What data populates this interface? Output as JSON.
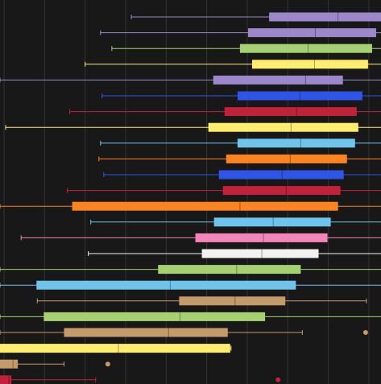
{
  "chart_data": {
    "type": "boxplot",
    "orientation": "horizontal",
    "grid": true,
    "xlim": [
      -10,
      930
    ],
    "background": "#181818",
    "grid_color": "#333333",
    "series": [
      {
        "color": "#9B87C9",
        "whisker_low": 314,
        "q1": 654,
        "median": 824,
        "q3": 933,
        "whisker_high": 940,
        "outliers": []
      },
      {
        "color": "#9B87C9",
        "whisker_low": 238,
        "q1": 602,
        "median": 768,
        "q3": 918,
        "whisker_high": 940,
        "outliers": []
      },
      {
        "color": "#A6D173",
        "whisker_low": 266,
        "q1": 582,
        "median": 750,
        "q3": 908,
        "whisker_high": 940,
        "outliers": []
      },
      {
        "color": "#FFEE6E",
        "whisker_low": 200,
        "q1": 612,
        "median": 766,
        "q3": 898,
        "whisker_high": 940,
        "outliers": []
      },
      {
        "color": "#9B87C9",
        "whisker_low": -10,
        "q1": 516,
        "median": 744,
        "q3": 836,
        "whisker_high": 940,
        "outliers": []
      },
      {
        "color": "#2F55E8",
        "whisker_low": 242,
        "q1": 576,
        "median": 730,
        "q3": 884,
        "whisker_high": 940,
        "outliers": []
      },
      {
        "color": "#C2213A",
        "whisker_low": 162,
        "q1": 544,
        "median": 722,
        "q3": 870,
        "whisker_high": 940,
        "outliers": []
      },
      {
        "color": "#FFEE6E",
        "whisker_low": 4,
        "q1": 504,
        "median": 708,
        "q3": 874,
        "whisker_high": 940,
        "outliers": []
      },
      {
        "color": "#6FC4EC",
        "whisker_low": 238,
        "q1": 576,
        "median": 732,
        "q3": 866,
        "whisker_high": 940,
        "outliers": []
      },
      {
        "color": "#FB8320",
        "whisker_low": 234,
        "q1": 548,
        "median": 706,
        "q3": 846,
        "whisker_high": 940,
        "outliers": []
      },
      {
        "color": "#2F55E8",
        "whisker_low": 246,
        "q1": 530,
        "median": 686,
        "q3": 838,
        "whisker_high": 940,
        "outliers": []
      },
      {
        "color": "#C2213A",
        "whisker_low": 156,
        "q1": 540,
        "median": 696,
        "q3": 830,
        "whisker_high": 940,
        "outliers": []
      },
      {
        "color": "#FB8320",
        "whisker_low": -10,
        "q1": 168,
        "median": 582,
        "q3": 824,
        "whisker_high": 940,
        "outliers": []
      },
      {
        "color": "#6FC4EC",
        "whisker_low": 214,
        "q1": 518,
        "median": 664,
        "q3": 806,
        "whisker_high": 940,
        "outliers": []
      },
      {
        "color": "#F584B8",
        "whisker_low": 42,
        "q1": 472,
        "median": 640,
        "q3": 798,
        "whisker_high": 940,
        "outliers": []
      },
      {
        "color": "#F2F2F2",
        "whisker_low": 208,
        "q1": 488,
        "median": 636,
        "q3": 776,
        "whisker_high": 940,
        "outliers": []
      },
      {
        "color": "#A6D173",
        "whisker_low": -10,
        "q1": 380,
        "median": 574,
        "q3": 732,
        "whisker_high": 940,
        "outliers": []
      },
      {
        "color": "#6FC4EC",
        "whisker_low": -10,
        "q1": 80,
        "median": 410,
        "q3": 720,
        "whisker_high": 940,
        "outliers": [
          936
        ]
      },
      {
        "color": "#C49A6C",
        "whisker_low": 82,
        "q1": 432,
        "median": 570,
        "q3": 694,
        "whisker_high": 894,
        "outliers": []
      },
      {
        "color": "#A6D173",
        "whisker_low": -10,
        "q1": 98,
        "median": 434,
        "q3": 644,
        "whisker_high": 940,
        "outliers": []
      },
      {
        "color": "#C49A6C",
        "whisker_low": -10,
        "q1": 148,
        "median": 406,
        "q3": 552,
        "whisker_high": 736,
        "outliers": [
          892
        ]
      },
      {
        "color": "#FFEE6E",
        "whisker_low": -10,
        "q1": -10,
        "median": 282,
        "q3": 558,
        "whisker_high": 560,
        "outliers": []
      },
      {
        "color": "#C49A6C",
        "whisker_low": -10,
        "q1": -10,
        "median": 22,
        "q3": 34,
        "whisker_high": 148,
        "outliers": [
          256
        ]
      },
      {
        "color": "#C2213A",
        "whisker_low": -10,
        "q1": -10,
        "median": 12,
        "q3": 18,
        "whisker_high": 226,
        "outliers": [
          676
        ]
      }
    ]
  }
}
